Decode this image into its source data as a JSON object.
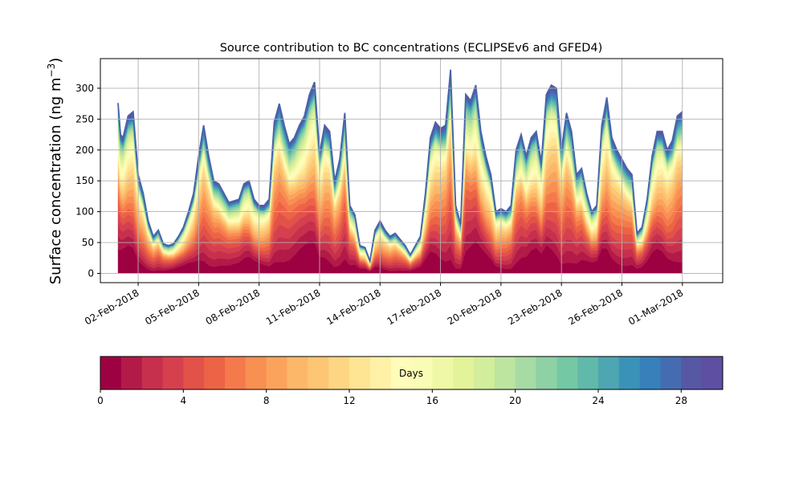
{
  "chart_data": {
    "type": "area",
    "stacked": true,
    "title": "Source contribution to BC concentrations (ECLIPSEv6 and GFED4)",
    "ylabel": "Surface concentration (ng m$^{-3}$)",
    "ylabel_main": "Surface concentration (ng m",
    "ylabel_sup": "−3",
    "ylabel_close": ")",
    "xlabel": "",
    "ylim": [
      -15,
      348
    ],
    "xlim": [
      "2018-01-31T03:00",
      "2018-03-03T00:00"
    ],
    "yticks": [
      0,
      50,
      100,
      150,
      200,
      250,
      300
    ],
    "xticks": [
      {
        "date": "2018-02-02",
        "label": "02-Feb-2018"
      },
      {
        "date": "2018-02-05",
        "label": "05-Feb-2018"
      },
      {
        "date": "2018-02-08",
        "label": "08-Feb-2018"
      },
      {
        "date": "2018-02-11",
        "label": "11-Feb-2018"
      },
      {
        "date": "2018-02-14",
        "label": "14-Feb-2018"
      },
      {
        "date": "2018-02-17",
        "label": "17-Feb-2018"
      },
      {
        "date": "2018-02-20",
        "label": "20-Feb-2018"
      },
      {
        "date": "2018-02-23",
        "label": "23-Feb-2018"
      },
      {
        "date": "2018-02-26",
        "label": "26-Feb-2018"
      },
      {
        "date": "2018-03-01",
        "label": "01-Mar-2018"
      }
    ],
    "grid": true,
    "total": {
      "x": [
        "2018-02-01T00:00",
        "2018-02-01T03:00",
        "2018-02-01T06:00",
        "2018-02-01T12:00",
        "2018-02-01T18:00",
        "2018-02-02T00:00",
        "2018-02-02T06:00",
        "2018-02-02T12:00",
        "2018-02-02T18:00",
        "2018-02-03T00:00",
        "2018-02-03T06:00",
        "2018-02-03T12:00",
        "2018-02-03T18:00",
        "2018-02-04T00:00",
        "2018-02-04T06:00",
        "2018-02-04T12:00",
        "2018-02-04T18:00",
        "2018-02-05T00:00",
        "2018-02-05T06:00",
        "2018-02-05T12:00",
        "2018-02-05T18:00",
        "2018-02-06T00:00",
        "2018-02-06T12:00",
        "2018-02-07T00:00",
        "2018-02-07T06:00",
        "2018-02-07T12:00",
        "2018-02-07T18:00",
        "2018-02-08T00:00",
        "2018-02-08T06:00",
        "2018-02-08T12:00",
        "2018-02-08T18:00",
        "2018-02-09T00:00",
        "2018-02-09T06:00",
        "2018-02-09T12:00",
        "2018-02-09T18:00",
        "2018-02-10T00:00",
        "2018-02-10T06:00",
        "2018-02-10T12:00",
        "2018-02-10T18:00",
        "2018-02-11T00:00",
        "2018-02-11T06:00",
        "2018-02-11T12:00",
        "2018-02-11T18:00",
        "2018-02-12T00:00",
        "2018-02-12T06:00",
        "2018-02-12T12:00",
        "2018-02-12T18:00",
        "2018-02-13T00:00",
        "2018-02-13T06:00",
        "2018-02-13T12:00",
        "2018-02-13T18:00",
        "2018-02-14T00:00",
        "2018-02-14T06:00",
        "2018-02-14T12:00",
        "2018-02-14T18:00",
        "2018-02-15T00:00",
        "2018-02-15T06:00",
        "2018-02-15T12:00",
        "2018-02-15T18:00",
        "2018-02-16T00:00",
        "2018-02-16T06:00",
        "2018-02-16T12:00",
        "2018-02-16T18:00",
        "2018-02-17T00:00",
        "2018-02-17T06:00",
        "2018-02-17T12:00",
        "2018-02-17T18:00",
        "2018-02-18T00:00",
        "2018-02-18T06:00",
        "2018-02-18T12:00",
        "2018-02-18T18:00",
        "2018-02-19T00:00",
        "2018-02-19T06:00",
        "2018-02-19T12:00",
        "2018-02-19T18:00",
        "2018-02-20T00:00",
        "2018-02-20T06:00",
        "2018-02-20T12:00",
        "2018-02-20T18:00",
        "2018-02-21T00:00",
        "2018-02-21T06:00",
        "2018-02-21T12:00",
        "2018-02-21T18:00",
        "2018-02-22T00:00",
        "2018-02-22T06:00",
        "2018-02-22T12:00",
        "2018-02-22T18:00",
        "2018-02-23T00:00",
        "2018-02-23T06:00",
        "2018-02-23T12:00",
        "2018-02-23T18:00",
        "2018-02-24T00:00",
        "2018-02-24T06:00",
        "2018-02-24T12:00",
        "2018-02-24T18:00",
        "2018-02-25T00:00",
        "2018-02-25T06:00",
        "2018-02-25T12:00",
        "2018-02-25T18:00",
        "2018-02-26T00:00",
        "2018-02-26T06:00",
        "2018-02-26T12:00",
        "2018-02-26T18:00",
        "2018-02-27T00:00",
        "2018-02-27T06:00",
        "2018-02-27T12:00",
        "2018-02-27T18:00",
        "2018-02-28T00:00",
        "2018-02-28T06:00",
        "2018-02-28T12:00",
        "2018-02-28T18:00",
        "2018-03-01T00:00"
      ],
      "y": [
        276,
        225,
        220,
        255,
        262,
        160,
        130,
        85,
        60,
        70,
        48,
        45,
        48,
        60,
        75,
        100,
        130,
        190,
        240,
        190,
        150,
        145,
        115,
        120,
        145,
        150,
        120,
        110,
        110,
        120,
        245,
        275,
        240,
        210,
        220,
        240,
        255,
        290,
        310,
        195,
        240,
        230,
        150,
        185,
        260,
        110,
        95,
        45,
        42,
        20,
        70,
        85,
        70,
        60,
        65,
        55,
        45,
        30,
        45,
        60,
        130,
        220,
        245,
        235,
        240,
        330,
        110,
        80,
        290,
        280,
        305,
        230,
        190,
        160,
        100,
        105,
        100,
        110,
        200,
        225,
        190,
        220,
        230,
        180,
        290,
        305,
        300,
        200,
        260,
        230,
        160,
        170,
        130,
        100,
        110,
        240,
        285,
        220,
        200,
        185,
        170,
        160,
        65,
        75,
        120,
        190,
        230,
        230,
        200,
        215,
        255,
        262
      ]
    },
    "layers": 30,
    "colorbar": {
      "label": "Days",
      "min": 0,
      "max": 30,
      "ticks": [
        0,
        4,
        8,
        12,
        16,
        20,
        24,
        28
      ],
      "colors": [
        "#9e0142",
        "#b21a47",
        "#c6304c",
        "#d6404e",
        "#e25249",
        "#ec6445",
        "#f57a4b",
        "#f88f53",
        "#fba35c",
        "#fcb868",
        "#fdc674",
        "#fed683",
        "#fee593",
        "#fff1a6",
        "#fffbb8",
        "#f9fcb5",
        "#eff8a7",
        "#e2f399",
        "#d2ed9b",
        "#bee5a0",
        "#a7dba4",
        "#8ed1a4",
        "#75c8a4",
        "#61b9a9",
        "#4da6b1",
        "#3b92b9",
        "#3780b9",
        "#456cb0",
        "#5658a4",
        "#5e4fa2"
      ]
    }
  }
}
